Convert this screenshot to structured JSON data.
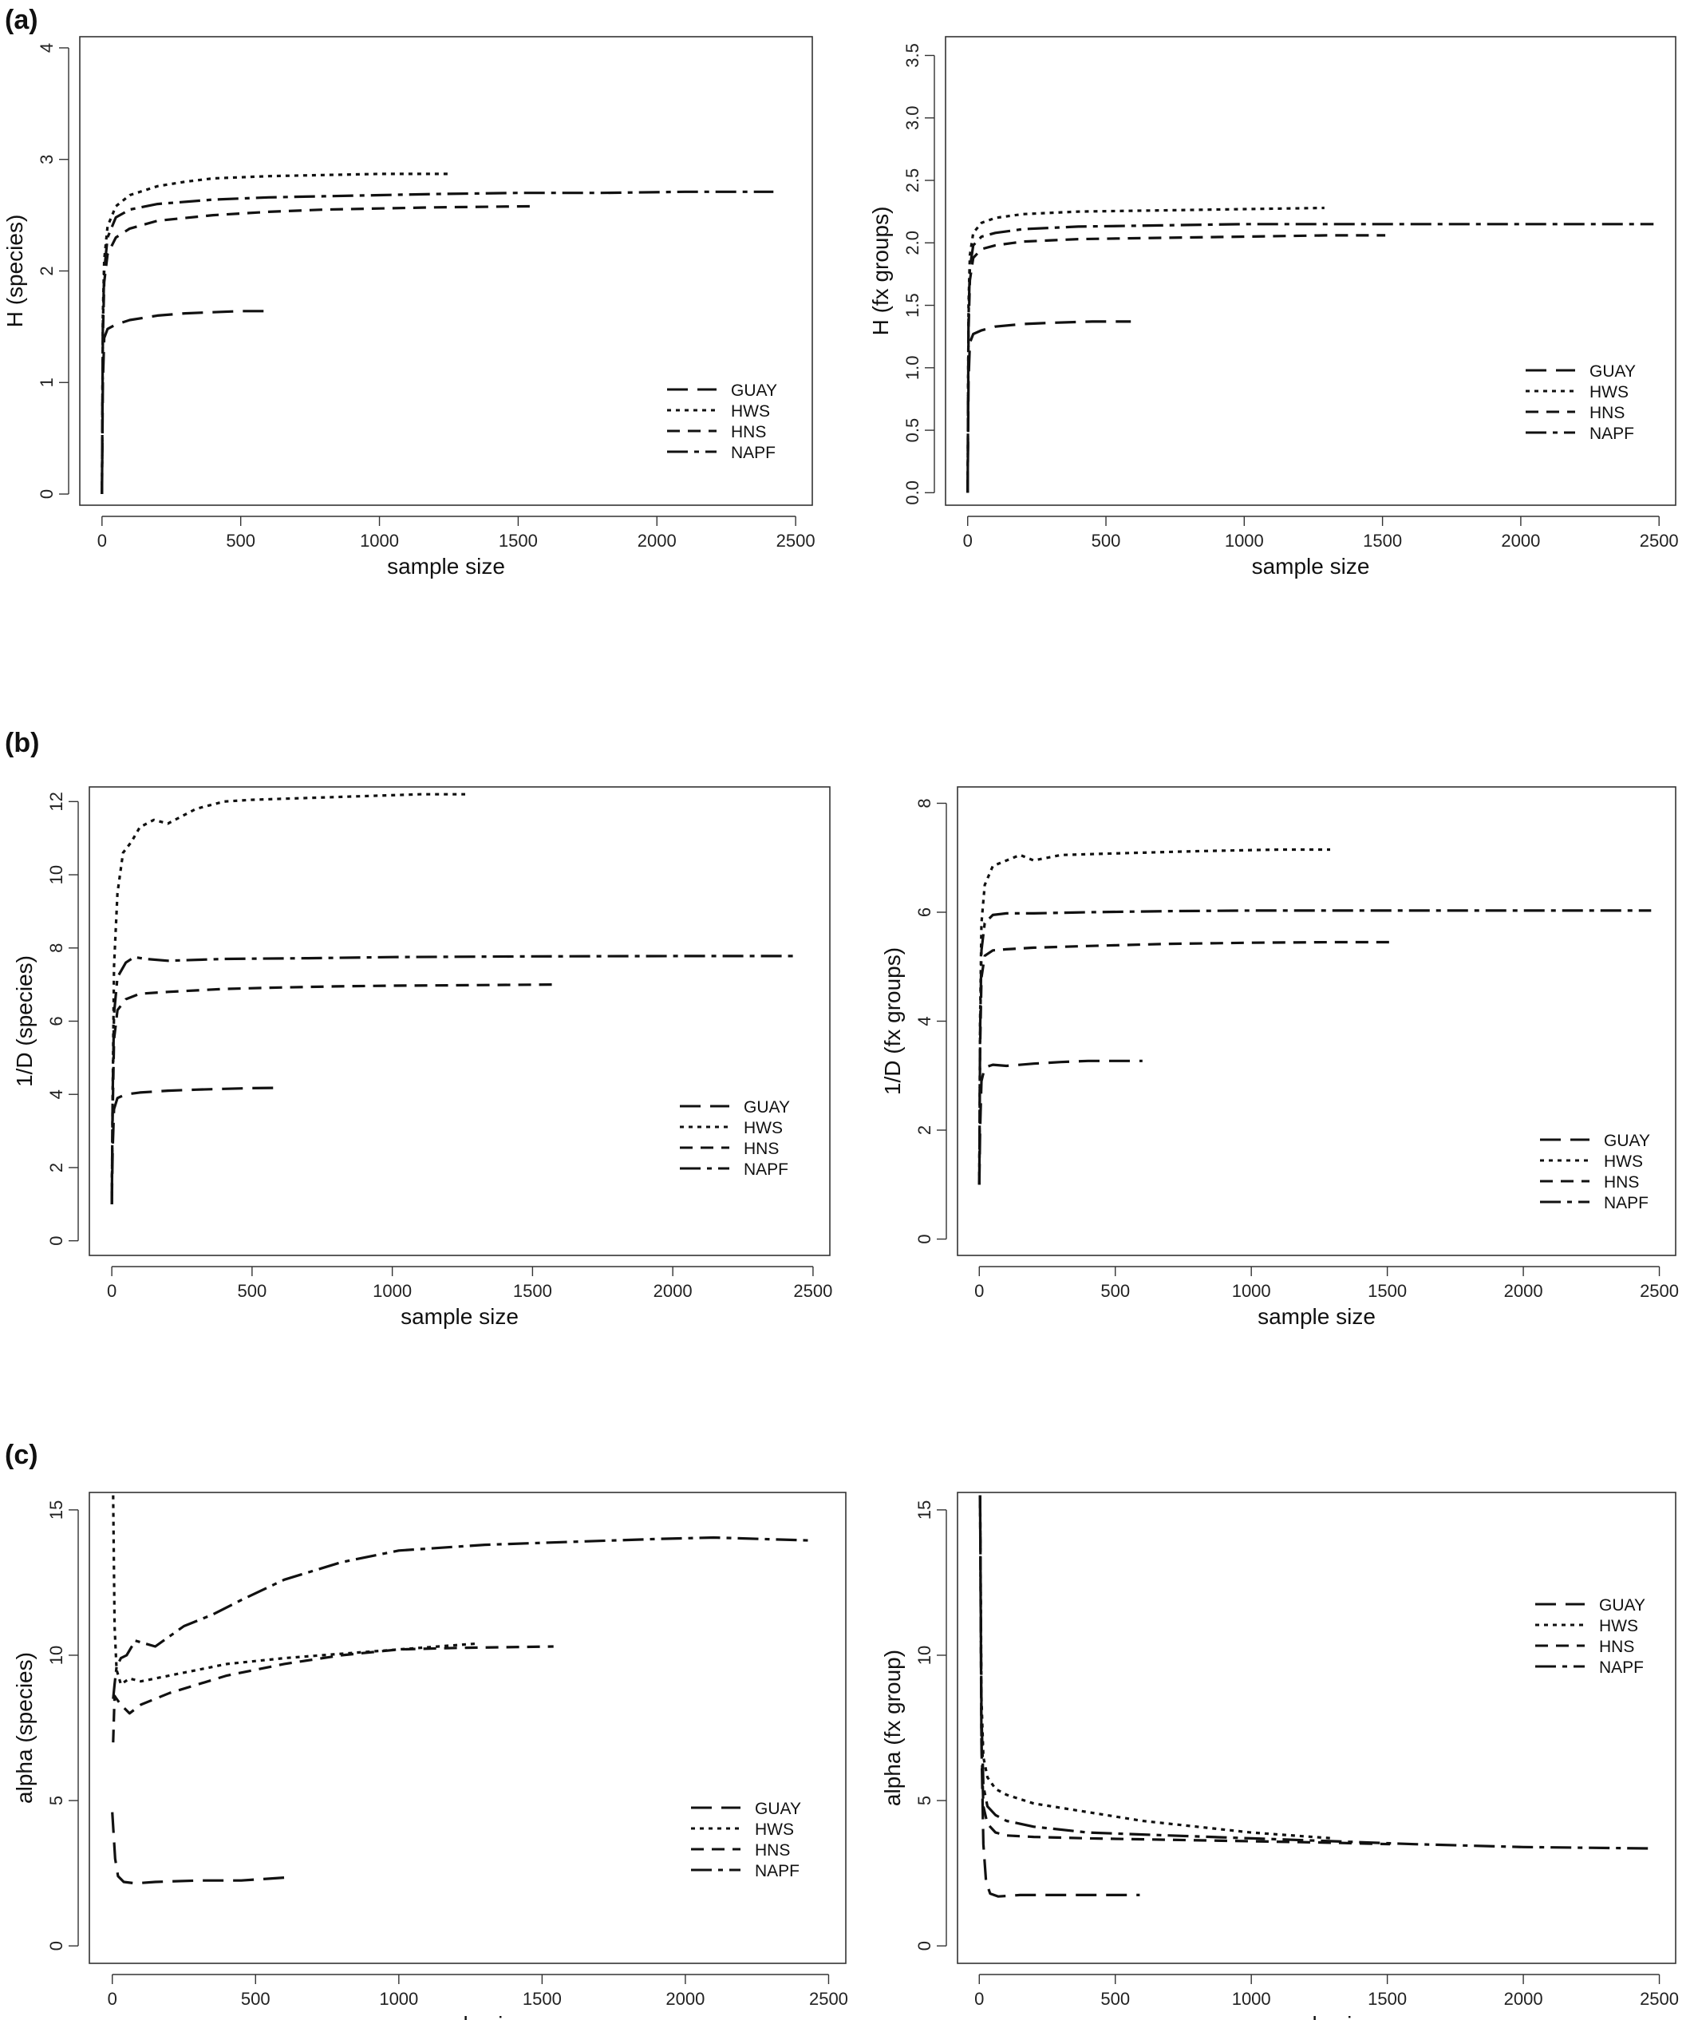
{
  "panels": [
    {
      "label": "(a)"
    },
    {
      "label": "(b)"
    },
    {
      "label": "(c)"
    }
  ],
  "legend_series": [
    "GUAY",
    "HWS",
    "HNS",
    "NAPF"
  ],
  "line_styles": {
    "GUAY": "26,12",
    "HWS": "5,6",
    "HNS": "16,10",
    "NAPF": "26,8,6,8"
  },
  "chart_data": [
    {
      "type": "line",
      "xlabel": "sample size",
      "ylabel": "H (species)",
      "xlim": [
        -80,
        2560
      ],
      "ylim": [
        -0.1,
        4.1
      ],
      "xticks": [
        0,
        500,
        1000,
        1500,
        2000,
        2500
      ],
      "yticks": [
        0,
        1,
        2,
        3,
        4
      ],
      "ytick_labels": [
        "0",
        "1",
        "2",
        "3",
        "4"
      ],
      "legend_position": "bottom-right",
      "series": [
        {
          "name": "GUAY",
          "x": [
            0,
            3,
            8,
            20,
            50,
            100,
            200,
            300,
            400,
            500,
            590
          ],
          "y": [
            0,
            1.0,
            1.4,
            1.48,
            1.52,
            1.56,
            1.6,
            1.62,
            1.63,
            1.64,
            1.64
          ]
        },
        {
          "name": "HWS",
          "x": [
            0,
            3,
            8,
            20,
            50,
            100,
            200,
            300,
            400,
            600,
            800,
            1000,
            1250
          ],
          "y": [
            0,
            1.6,
            2.1,
            2.4,
            2.58,
            2.68,
            2.76,
            2.8,
            2.83,
            2.85,
            2.86,
            2.87,
            2.87
          ]
        },
        {
          "name": "HNS",
          "x": [
            0,
            3,
            8,
            20,
            50,
            100,
            200,
            400,
            600,
            800,
            1000,
            1200,
            1560
          ],
          "y": [
            0,
            1.4,
            1.9,
            2.15,
            2.3,
            2.38,
            2.45,
            2.5,
            2.53,
            2.55,
            2.56,
            2.57,
            2.58
          ]
        },
        {
          "name": "NAPF",
          "x": [
            0,
            3,
            8,
            20,
            50,
            100,
            200,
            400,
            600,
            800,
            1000,
            1200,
            1500,
            1800,
            2100,
            2420
          ],
          "y": [
            0,
            1.5,
            2.0,
            2.3,
            2.48,
            2.55,
            2.6,
            2.64,
            2.66,
            2.67,
            2.68,
            2.69,
            2.7,
            2.7,
            2.71,
            2.71
          ]
        }
      ]
    },
    {
      "type": "line",
      "xlabel": "sample size",
      "ylabel": "H (fx groups)",
      "xlim": [
        -80,
        2560
      ],
      "ylim": [
        -0.1,
        3.65
      ],
      "xticks": [
        0,
        500,
        1000,
        1500,
        2000,
        2500
      ],
      "yticks": [
        0,
        0.5,
        1,
        1.5,
        2,
        2.5,
        3,
        3.5
      ],
      "ytick_labels": [
        "0.0",
        "0.5",
        "1.0",
        "1.5",
        "2.0",
        "2.5",
        "3.0",
        "3.5"
      ],
      "legend_position": "bottom-right",
      "series": [
        {
          "name": "GUAY",
          "x": [
            0,
            3,
            8,
            20,
            50,
            100,
            200,
            300,
            450,
            590
          ],
          "y": [
            0,
            0.9,
            1.2,
            1.27,
            1.3,
            1.33,
            1.35,
            1.36,
            1.37,
            1.37
          ]
        },
        {
          "name": "HWS",
          "x": [
            0,
            3,
            8,
            20,
            50,
            100,
            200,
            400,
            700,
            1000,
            1290
          ],
          "y": [
            0,
            1.5,
            1.9,
            2.08,
            2.16,
            2.2,
            2.23,
            2.25,
            2.26,
            2.27,
            2.28
          ]
        },
        {
          "name": "HNS",
          "x": [
            0,
            3,
            8,
            20,
            50,
            100,
            200,
            400,
            700,
            1000,
            1300,
            1510
          ],
          "y": [
            0,
            1.3,
            1.7,
            1.88,
            1.95,
            1.98,
            2.01,
            2.03,
            2.04,
            2.05,
            2.06,
            2.06
          ]
        },
        {
          "name": "NAPF",
          "x": [
            0,
            3,
            8,
            20,
            50,
            100,
            200,
            400,
            700,
            1000,
            1500,
            2000,
            2480
          ],
          "y": [
            0,
            1.4,
            1.8,
            1.98,
            2.05,
            2.08,
            2.11,
            2.13,
            2.14,
            2.15,
            2.15,
            2.15,
            2.15
          ]
        }
      ]
    },
    {
      "type": "line",
      "xlabel": "sample size",
      "ylabel": "1/D (species)",
      "xlim": [
        -80,
        2560
      ],
      "ylim": [
        -0.4,
        12.4
      ],
      "xticks": [
        0,
        500,
        1000,
        1500,
        2000,
        2500
      ],
      "yticks": [
        0,
        2,
        4,
        6,
        8,
        10,
        12
      ],
      "ytick_labels": [
        "0",
        "2",
        "4",
        "6",
        "8",
        "10",
        "12"
      ],
      "legend_position": "bottom-right",
      "series": [
        {
          "name": "GUAY",
          "x": [
            0,
            3,
            8,
            20,
            50,
            100,
            200,
            300,
            400,
            500,
            600
          ],
          "y": [
            1,
            2.5,
            3.6,
            3.9,
            4.0,
            4.05,
            4.1,
            4.13,
            4.15,
            4.17,
            4.18
          ]
        },
        {
          "name": "HWS",
          "x": [
            0,
            3,
            8,
            20,
            40,
            70,
            100,
            150,
            200,
            300,
            400,
            500,
            700,
            900,
            1100,
            1260
          ],
          "y": [
            1,
            4,
            7.5,
            9.5,
            10.6,
            10.9,
            11.3,
            11.5,
            11.4,
            11.8,
            12.0,
            12.05,
            12.1,
            12.15,
            12.2,
            12.2
          ]
        },
        {
          "name": "HNS",
          "x": [
            0,
            3,
            8,
            20,
            50,
            100,
            200,
            400,
            600,
            800,
            1000,
            1200,
            1570
          ],
          "y": [
            1,
            3.5,
            5.5,
            6.3,
            6.6,
            6.75,
            6.8,
            6.88,
            6.92,
            6.95,
            6.97,
            6.98,
            7.0
          ]
        },
        {
          "name": "NAPF",
          "x": [
            0,
            3,
            8,
            20,
            50,
            80,
            120,
            200,
            400,
            700,
            1000,
            1500,
            2000,
            2430
          ],
          "y": [
            1,
            4,
            6.2,
            7.2,
            7.6,
            7.75,
            7.7,
            7.65,
            7.7,
            7.72,
            7.75,
            7.77,
            7.78,
            7.78
          ]
        }
      ]
    },
    {
      "type": "line",
      "xlabel": "sample size",
      "ylabel": "1/D (fx groups)",
      "xlim": [
        -80,
        2560
      ],
      "ylim": [
        -0.3,
        8.3
      ],
      "xticks": [
        0,
        500,
        1000,
        1500,
        2000,
        2500
      ],
      "yticks": [
        0,
        2,
        4,
        6,
        8
      ],
      "ytick_labels": [
        "0",
        "2",
        "4",
        "6",
        "8"
      ],
      "legend_position": "bottom-right",
      "series": [
        {
          "name": "GUAY",
          "x": [
            0,
            3,
            8,
            20,
            50,
            100,
            200,
            300,
            400,
            500,
            600
          ],
          "y": [
            1,
            2.0,
            2.9,
            3.15,
            3.2,
            3.18,
            3.22,
            3.25,
            3.27,
            3.27,
            3.27
          ]
        },
        {
          "name": "HWS",
          "x": [
            0,
            3,
            8,
            20,
            50,
            100,
            150,
            200,
            300,
            500,
            800,
            1100,
            1290
          ],
          "y": [
            1,
            4,
            5.8,
            6.5,
            6.85,
            6.95,
            7.05,
            6.95,
            7.05,
            7.08,
            7.12,
            7.15,
            7.15
          ]
        },
        {
          "name": "HNS",
          "x": [
            0,
            3,
            8,
            20,
            50,
            100,
            200,
            400,
            700,
            1000,
            1300,
            1510
          ],
          "y": [
            1,
            3.5,
            4.8,
            5.2,
            5.3,
            5.32,
            5.35,
            5.38,
            5.42,
            5.44,
            5.45,
            5.45
          ]
        },
        {
          "name": "NAPF",
          "x": [
            0,
            3,
            8,
            20,
            50,
            100,
            200,
            400,
            700,
            1000,
            1500,
            2000,
            2470
          ],
          "y": [
            1,
            3.8,
            5.3,
            5.8,
            5.95,
            5.98,
            5.98,
            6.0,
            6.02,
            6.03,
            6.03,
            6.03,
            6.03
          ]
        }
      ]
    },
    {
      "type": "line",
      "xlabel": "sample size",
      "ylabel": "alpha (species)",
      "xlim": [
        -80,
        2560
      ],
      "ylim": [
        -0.6,
        15.6
      ],
      "xticks": [
        0,
        500,
        1000,
        1500,
        2000,
        2500
      ],
      "yticks": [
        0,
        5,
        10,
        15
      ],
      "ytick_labels": [
        "0",
        "5",
        "10",
        "15"
      ],
      "legend_position": "bottom-right",
      "series": [
        {
          "name": "GUAY",
          "x": [
            0,
            10,
            20,
            40,
            80,
            150,
            300,
            450,
            600
          ],
          "y": [
            4.6,
            3.0,
            2.4,
            2.2,
            2.15,
            2.2,
            2.25,
            2.25,
            2.35
          ]
        },
        {
          "name": "HWS",
          "x": [
            3,
            8,
            15,
            30,
            60,
            100,
            200,
            400,
            600,
            800,
            1000,
            1270
          ],
          "y": [
            15.5,
            11,
            9.5,
            9.0,
            9.2,
            9.1,
            9.3,
            9.7,
            9.9,
            10.05,
            10.2,
            10.4
          ]
        },
        {
          "name": "HNS",
          "x": [
            3,
            8,
            15,
            30,
            60,
            100,
            200,
            400,
            600,
            800,
            1000,
            1200,
            1540
          ],
          "y": [
            7,
            8.6,
            8.5,
            8.3,
            8.0,
            8.3,
            8.7,
            9.3,
            9.7,
            10.0,
            10.2,
            10.25,
            10.3
          ]
        },
        {
          "name": "NAPF",
          "x": [
            3,
            8,
            15,
            30,
            50,
            80,
            150,
            250,
            350,
            450,
            600,
            800,
            1000,
            1300,
            1600,
            1900,
            2100,
            2430
          ],
          "y": [
            8.5,
            9.0,
            9.6,
            9.9,
            10.0,
            10.5,
            10.3,
            11.0,
            11.4,
            11.9,
            12.6,
            13.2,
            13.6,
            13.8,
            13.9,
            14.0,
            14.05,
            13.95
          ]
        }
      ]
    },
    {
      "type": "line",
      "xlabel": "sample size",
      "ylabel": "alpha (fx group)",
      "xlim": [
        -80,
        2560
      ],
      "ylim": [
        -0.6,
        15.6
      ],
      "xticks": [
        0,
        500,
        1000,
        1500,
        2000,
        2500
      ],
      "yticks": [
        0,
        5,
        10,
        15
      ],
      "ytick_labels": [
        "0",
        "5",
        "10",
        "15"
      ],
      "legend_position": "top-right",
      "series": [
        {
          "name": "GUAY",
          "x": [
            3,
            8,
            15,
            25,
            40,
            70,
            150,
            300,
            450,
            590
          ],
          "y": [
            15.5,
            7,
            3.5,
            2.2,
            1.8,
            1.7,
            1.75,
            1.75,
            1.75,
            1.75
          ]
        },
        {
          "name": "HWS",
          "x": [
            3,
            8,
            15,
            30,
            60,
            100,
            200,
            400,
            600,
            800,
            1000,
            1300
          ],
          "y": [
            15.5,
            8.5,
            6.5,
            5.8,
            5.4,
            5.2,
            4.9,
            4.6,
            4.3,
            4.1,
            3.9,
            3.7
          ]
        },
        {
          "name": "HNS",
          "x": [
            3,
            8,
            15,
            30,
            60,
            100,
            200,
            400,
            700,
            1000,
            1300,
            1510
          ],
          "y": [
            15.5,
            7,
            4.8,
            4.2,
            3.9,
            3.8,
            3.75,
            3.7,
            3.65,
            3.6,
            3.55,
            3.5
          ]
        },
        {
          "name": "NAPF",
          "x": [
            3,
            8,
            15,
            30,
            60,
            100,
            200,
            400,
            700,
            1000,
            1300,
            1600,
            2000,
            2480
          ],
          "y": [
            15.5,
            8,
            5.5,
            4.8,
            4.5,
            4.3,
            4.1,
            3.9,
            3.8,
            3.7,
            3.6,
            3.5,
            3.4,
            3.35
          ]
        }
      ]
    }
  ]
}
